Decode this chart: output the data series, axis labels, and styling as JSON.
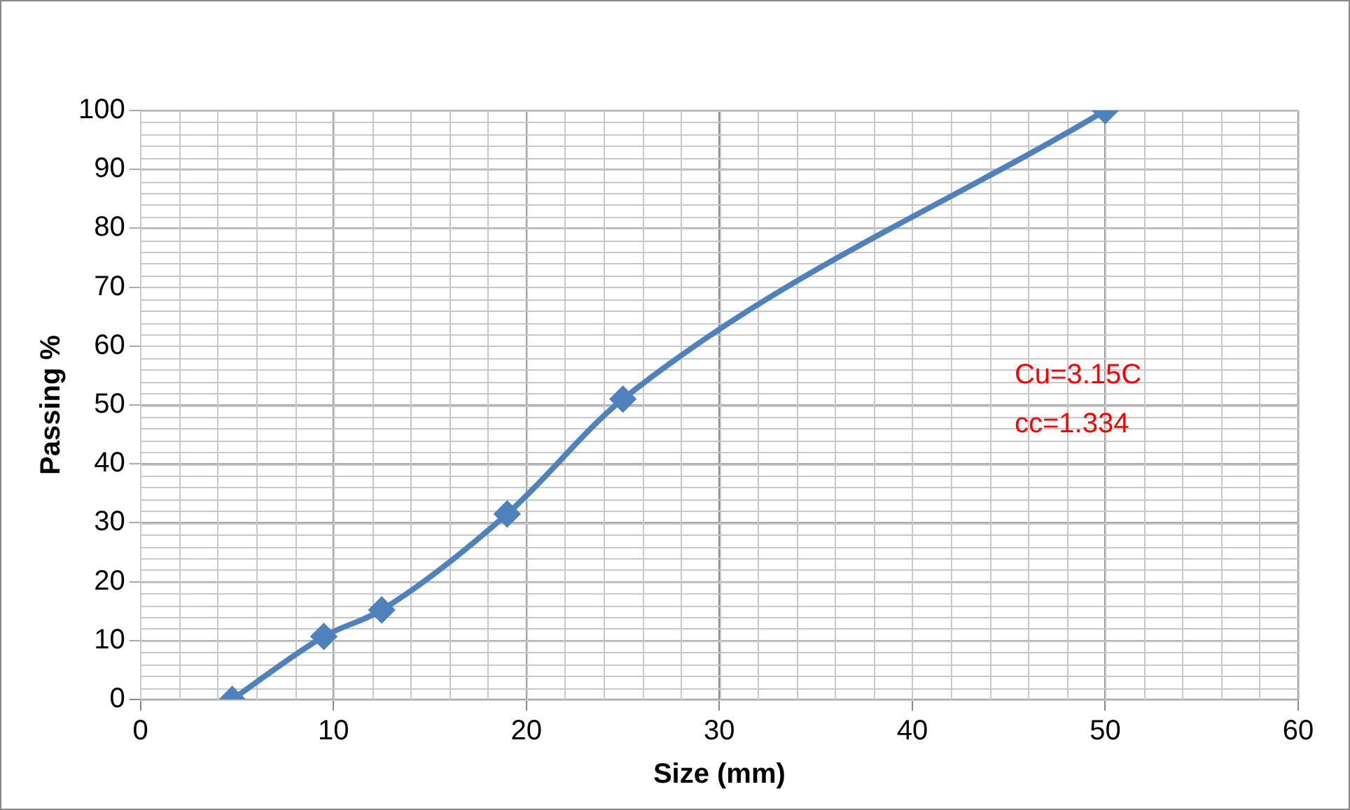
{
  "chart_data": {
    "type": "line",
    "xlabel": "Size (mm)",
    "ylabel": "Passing %",
    "x": [
      4.75,
      9.5,
      12.5,
      19,
      25,
      50
    ],
    "series": [
      {
        "color": "#4f81bd",
        "values": [
          0,
          10.7,
          15.2,
          31.5,
          51,
          100
        ]
      }
    ],
    "xlim": [
      0,
      60
    ],
    "xticks": [
      0,
      10,
      20,
      30,
      40,
      50,
      60
    ],
    "ylim": [
      0,
      100
    ],
    "yticks": [
      0,
      10,
      20,
      30,
      40,
      50,
      60,
      70,
      80,
      90,
      100
    ],
    "grid": true,
    "legend": false,
    "marker": "diamond",
    "line_style": "solid",
    "annotations": [
      "Cu=3.15C",
      "cc=1.334"
    ]
  }
}
